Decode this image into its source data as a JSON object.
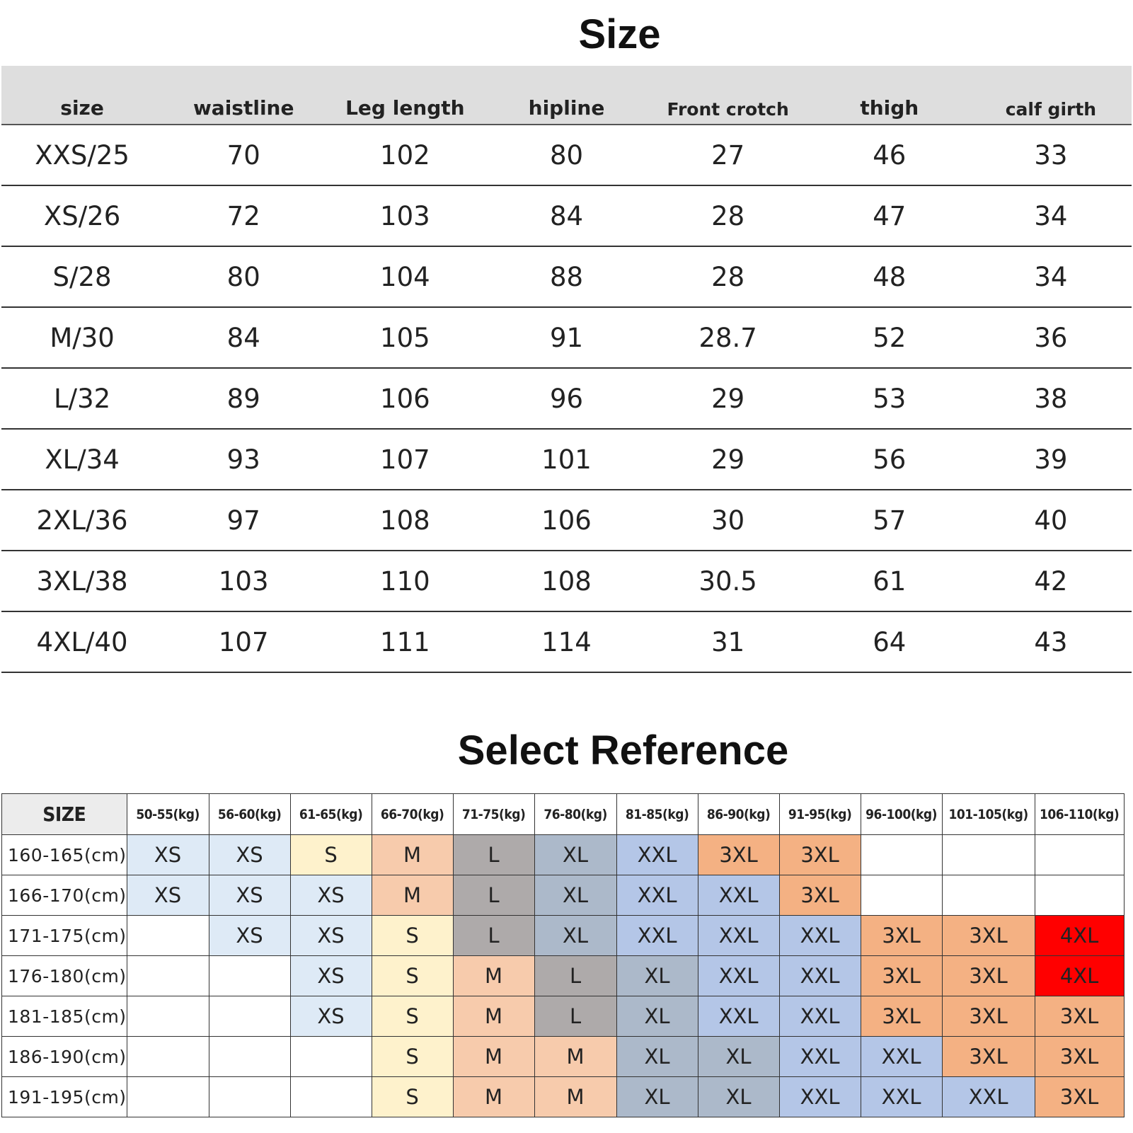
{
  "size_chart": {
    "title": "Size",
    "headers": [
      "size",
      "waistline",
      "Leg length",
      "hipline",
      "Front crotch",
      "thigh",
      "calf girth"
    ],
    "rows": [
      [
        "XXS/25",
        "70",
        "102",
        "80",
        "27",
        "46",
        "33"
      ],
      [
        "XS/26",
        "72",
        "103",
        "84",
        "28",
        "47",
        "34"
      ],
      [
        "S/28",
        "80",
        "104",
        "88",
        "28",
        "48",
        "34"
      ],
      [
        "M/30",
        "84",
        "105",
        "91",
        "28.7",
        "52",
        "36"
      ],
      [
        "L/32",
        "89",
        "106",
        "96",
        "29",
        "53",
        "38"
      ],
      [
        "XL/34",
        "93",
        "107",
        "101",
        "29",
        "56",
        "39"
      ],
      [
        "2XL/36",
        "97",
        "108",
        "106",
        "30",
        "57",
        "40"
      ],
      [
        "3XL/38",
        "103",
        "110",
        "108",
        "30.5",
        "61",
        "42"
      ],
      [
        "4XL/40",
        "107",
        "111",
        "114",
        "31",
        "64",
        "43"
      ]
    ]
  },
  "reference": {
    "title": "Select Reference",
    "corner": "SIZE",
    "weights": [
      "50-55(kg)",
      "56-60(kg)",
      "61-65(kg)",
      "66-70(kg)",
      "71-75(kg)",
      "76-80(kg)",
      "81-85(kg)",
      "86-90(kg)",
      "91-95(kg)",
      "96-100(kg)",
      "101-105(kg)",
      "106-110(kg)"
    ],
    "heights": [
      "160-165(cm)",
      "166-170(cm)",
      "171-175(cm)",
      "176-180(cm)",
      "181-185(cm)",
      "186-190(cm)",
      "191-195(cm)"
    ],
    "grid": [
      [
        "XS",
        "XS",
        "S",
        "M",
        "L",
        "XL",
        "XXL",
        "3XL",
        "3XL",
        "",
        "",
        ""
      ],
      [
        "XS",
        "XS",
        "XS",
        "M",
        "L",
        "XL",
        "XXL",
        "XXL",
        "3XL",
        "",
        "",
        ""
      ],
      [
        "",
        "XS",
        "XS",
        "S",
        "L",
        "XL",
        "XXL",
        "XXL",
        "XXL",
        "3XL",
        "3XL",
        "4XL"
      ],
      [
        "",
        "",
        "XS",
        "S",
        "M",
        "L",
        "XL",
        "XXL",
        "XXL",
        "3XL",
        "3XL",
        "4XL"
      ],
      [
        "",
        "",
        "XS",
        "S",
        "M",
        "L",
        "XL",
        "XXL",
        "XXL",
        "3XL",
        "3XL",
        "3XL"
      ],
      [
        "",
        "",
        "",
        "S",
        "M",
        "M",
        "XL",
        "XL",
        "XXL",
        "XXL",
        "3XL",
        "3XL"
      ],
      [
        "",
        "",
        "",
        "S",
        "M",
        "M",
        "XL",
        "XL",
        "XXL",
        "XXL",
        "XXL",
        "3XL"
      ]
    ],
    "colors": {
      "XS": "#deeaf6",
      "S": "#fef2cc",
      "M": "#f7cbac",
      "L": "#aeaaaa",
      "XL": "#acb9ca",
      "XXL": "#b4c6e7",
      "3XL": "#f4b183",
      "4XL": "#ff0000",
      "empty": "#ffffff"
    },
    "overrides": [
      {
        "row": 3,
        "col": 6,
        "color": "#acb9ca"
      },
      {
        "row": 4,
        "col": 6,
        "color": "#acb9ca"
      },
      {
        "row": 5,
        "col": 7,
        "color": "#acb9ca"
      },
      {
        "row": 6,
        "col": 7,
        "color": "#acb9ca"
      }
    ]
  }
}
